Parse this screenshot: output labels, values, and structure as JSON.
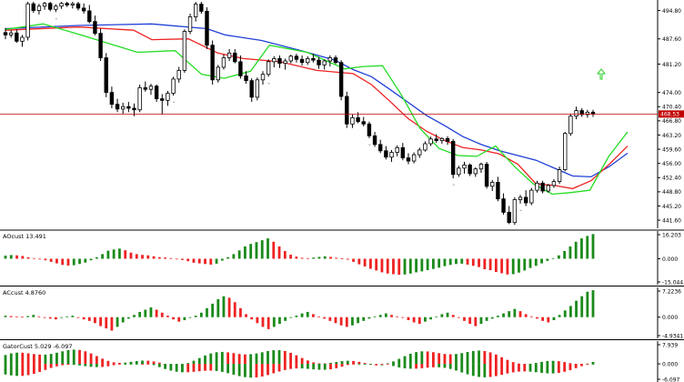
{
  "chart_data": {
    "type": "candlestick",
    "main": {
      "price_ticks": [
        "494.80",
        "481.20",
        "487.60",
        "474.00",
        "470.40",
        "466.80",
        "463.20",
        "459.60",
        "456.00",
        "452.40",
        "448.80",
        "445.20",
        "441.60"
      ],
      "current_price": "468.53",
      "ylim": [
        440.0,
        497.0
      ],
      "candles": [
        [
          489.2,
          490.4,
          487.5,
          488.6
        ],
        [
          488.6,
          489.8,
          487.9,
          489.1
        ],
        [
          489.1,
          490.0,
          486.6,
          487.0
        ],
        [
          487.0,
          488.6,
          485.6,
          488.0
        ],
        [
          488.0,
          497.0,
          487.2,
          496.5
        ],
        [
          496.5,
          497.0,
          494.2,
          494.8
        ],
        [
          494.8,
          496.5,
          493.8,
          495.9
        ],
        [
          495.9,
          497.0,
          495.0,
          496.6
        ],
        [
          496.6,
          497.0,
          494.6,
          495.1
        ],
        [
          495.1,
          496.4,
          494.4,
          495.9
        ],
        [
          495.9,
          497.0,
          495.2,
          496.6
        ],
        [
          496.6,
          497.0,
          495.7,
          496.2
        ],
        [
          496.2,
          497.0,
          495.3,
          496.5
        ],
        [
          496.5,
          497.0,
          494.8,
          495.4
        ],
        [
          495.4,
          496.6,
          494.0,
          494.7
        ],
        [
          494.7,
          496.2,
          491.5,
          492.0
        ],
        [
          492.0,
          493.5,
          488.5,
          489.0
        ],
        [
          489.0,
          490.2,
          482.0,
          482.8
        ],
        [
          482.8,
          484.0,
          472.8,
          474.0
        ],
        [
          474.0,
          475.5,
          470.0,
          471.0
        ],
        [
          471.0,
          472.4,
          469.0,
          469.8
        ],
        [
          469.8,
          471.4,
          468.6,
          470.4
        ],
        [
          470.4,
          471.6,
          469.0,
          470.0
        ],
        [
          470.0,
          471.2,
          468.0,
          469.6
        ],
        [
          469.6,
          476.0,
          469.0,
          475.2
        ],
        [
          475.2,
          476.8,
          474.2,
          474.8
        ],
        [
          474.8,
          476.2,
          473.4,
          475.6
        ],
        [
          475.6,
          476.0,
          471.6,
          472.4
        ],
        [
          472.4,
          473.6,
          468.4,
          472.0
        ],
        [
          472.0,
          474.4,
          470.6,
          473.8
        ],
        [
          473.8,
          478.0,
          473.2,
          477.4
        ],
        [
          477.4,
          480.5,
          476.5,
          479.6
        ],
        [
          479.6,
          490.0,
          479.0,
          489.5
        ],
        [
          489.5,
          494.0,
          488.8,
          493.2
        ],
        [
          493.2,
          497.0,
          492.0,
          496.4
        ],
        [
          496.4,
          497.0,
          494.0,
          494.6
        ],
        [
          494.6,
          495.6,
          485.0,
          486.0
        ],
        [
          486.0,
          487.2,
          476.0,
          477.2
        ],
        [
          477.2,
          481.0,
          476.5,
          480.4
        ],
        [
          480.4,
          483.6,
          479.8,
          482.8
        ],
        [
          482.8,
          485.0,
          482.0,
          484.0
        ],
        [
          484.0,
          485.0,
          481.4,
          481.8
        ],
        [
          481.8,
          483.4,
          477.5,
          478.2
        ],
        [
          478.2,
          479.4,
          476.2,
          477.0
        ],
        [
          477.0,
          477.6,
          471.6,
          472.8
        ],
        [
          472.8,
          477.8,
          472.0,
          477.2
        ],
        [
          477.2,
          479.4,
          476.0,
          478.6
        ],
        [
          478.6,
          482.4,
          478.0,
          481.8
        ],
        [
          481.8,
          483.2,
          480.4,
          482.6
        ],
        [
          482.6,
          483.4,
          480.2,
          481.4
        ],
        [
          481.4,
          482.6,
          479.8,
          482.0
        ],
        [
          482.0,
          483.6,
          481.4,
          483.2
        ],
        [
          483.2,
          483.8,
          481.6,
          482.4
        ],
        [
          482.4,
          483.4,
          480.8,
          481.6
        ],
        [
          481.6,
          483.2,
          481.0,
          482.6
        ],
        [
          482.6,
          483.8,
          481.6,
          482.2
        ],
        [
          482.2,
          483.0,
          480.0,
          481.0
        ],
        [
          481.0,
          482.4,
          479.8,
          482.0
        ],
        [
          482.0,
          483.4,
          480.6,
          482.8
        ],
        [
          482.8,
          483.4,
          481.2,
          481.6
        ],
        [
          481.6,
          482.2,
          472.0,
          473.0
        ],
        [
          473.0,
          474.2,
          465.0,
          466.0
        ],
        [
          466.0,
          468.4,
          465.0,
          467.6
        ],
        [
          467.6,
          469.0,
          466.2,
          466.6
        ],
        [
          466.6,
          467.8,
          465.4,
          466.0
        ],
        [
          466.0,
          466.6,
          462.4,
          463.0
        ],
        [
          463.0,
          464.0,
          460.2,
          460.8
        ],
        [
          460.8,
          462.0,
          458.6,
          459.2
        ],
        [
          459.2,
          460.4,
          457.0,
          457.6
        ],
        [
          457.6,
          459.4,
          456.4,
          458.8
        ],
        [
          458.8,
          460.6,
          457.8,
          460.0
        ],
        [
          460.0,
          461.2,
          456.8,
          457.4
        ],
        [
          457.4,
          458.6,
          455.8,
          456.6
        ],
        [
          456.6,
          458.8,
          456.0,
          458.2
        ],
        [
          458.2,
          460.0,
          457.4,
          459.4
        ],
        [
          459.4,
          461.6,
          459.0,
          461.0
        ],
        [
          461.0,
          462.8,
          460.4,
          462.2
        ],
        [
          462.2,
          463.4,
          461.2,
          461.8
        ],
        [
          461.8,
          462.6,
          461.0,
          462.3
        ],
        [
          462.3,
          462.9,
          460.7,
          461.6
        ],
        [
          461.6,
          462.2,
          452.2,
          453.2
        ],
        [
          453.2,
          455.4,
          452.6,
          454.8
        ],
        [
          454.8,
          456.4,
          453.4,
          455.6
        ],
        [
          455.6,
          456.0,
          452.8,
          453.4
        ],
        [
          453.4,
          455.0,
          452.6,
          454.6
        ],
        [
          454.6,
          456.2,
          453.6,
          455.8
        ],
        [
          455.8,
          456.4,
          449.6,
          450.2
        ],
        [
          450.2,
          451.8,
          449.0,
          451.2
        ],
        [
          451.2,
          452.6,
          446.4,
          447.0
        ],
        [
          447.0,
          448.4,
          443.0,
          443.6
        ],
        [
          443.6,
          445.2,
          440.6,
          441.0
        ],
        [
          441.0,
          447.4,
          440.4,
          446.8
        ],
        [
          446.8,
          448.0,
          445.8,
          447.4
        ],
        [
          447.4,
          449.2,
          445.2,
          446.0
        ],
        [
          446.0,
          449.8,
          445.4,
          449.2
        ],
        [
          449.2,
          451.6,
          448.6,
          451.0
        ],
        [
          451.0,
          451.6,
          448.4,
          449.0
        ],
        [
          449.0,
          450.8,
          448.6,
          450.4
        ],
        [
          450.4,
          452.0,
          449.8,
          451.4
        ],
        [
          451.4,
          455.2,
          450.8,
          454.4
        ],
        [
          454.4,
          464.0,
          454.0,
          463.6
        ],
        [
          463.6,
          468.6,
          463.0,
          468.0
        ],
        [
          468.0,
          470.4,
          467.2,
          469.4
        ],
        [
          469.4,
          470.0,
          467.8,
          468.4
        ],
        [
          468.4,
          469.6,
          467.6,
          469.0
        ],
        [
          469.0,
          469.6,
          467.8,
          468.5
        ]
      ],
      "lines": {
        "blue": [
          [
            0,
            490.2
          ],
          [
            20,
            491.0
          ],
          [
            40,
            491.4
          ],
          [
            55,
            490.2
          ],
          [
            60,
            488.6
          ],
          [
            70,
            487.2
          ],
          [
            80,
            484.8
          ],
          [
            90,
            482.2
          ],
          [
            95,
            479.8
          ],
          [
            100,
            478.0
          ],
          [
            105,
            474.8
          ],
          [
            110,
            471.5
          ],
          [
            115,
            468.2
          ],
          [
            120,
            465.6
          ],
          [
            125,
            462.8
          ],
          [
            130,
            460.8
          ],
          [
            135,
            459.2
          ],
          [
            140,
            458.0
          ],
          [
            145,
            456.8
          ],
          [
            150,
            454.8
          ],
          [
            155,
            452.8
          ],
          [
            160,
            452.6
          ],
          [
            165,
            455.2
          ],
          [
            170,
            458.6
          ]
        ],
        "red": [
          [
            0,
            489.8
          ],
          [
            20,
            490.6
          ],
          [
            35,
            489.8
          ],
          [
            40,
            487.4
          ],
          [
            50,
            487.6
          ],
          [
            58,
            484.0
          ],
          [
            65,
            482.6
          ],
          [
            75,
            481.8
          ],
          [
            85,
            479.6
          ],
          [
            95,
            478.8
          ],
          [
            100,
            476.0
          ],
          [
            105,
            471.8
          ],
          [
            110,
            467.4
          ],
          [
            115,
            464.2
          ],
          [
            120,
            461.8
          ],
          [
            125,
            460.0
          ],
          [
            130,
            459.4
          ],
          [
            135,
            458.4
          ],
          [
            140,
            455.8
          ],
          [
            145,
            450.8
          ],
          [
            150,
            450.4
          ],
          [
            155,
            449.6
          ],
          [
            160,
            451.6
          ],
          [
            165,
            455.8
          ],
          [
            170,
            460.4
          ]
        ],
        "green": [
          [
            0,
            490.0
          ],
          [
            10,
            491.4
          ],
          [
            20,
            488.6
          ],
          [
            35,
            484.2
          ],
          [
            45,
            484.6
          ],
          [
            52,
            478.6
          ],
          [
            58,
            477.6
          ],
          [
            65,
            479.4
          ],
          [
            70,
            486.0
          ],
          [
            80,
            484.2
          ],
          [
            90,
            480.0
          ],
          [
            95,
            480.6
          ],
          [
            100,
            480.8
          ],
          [
            105,
            473.4
          ],
          [
            110,
            464.8
          ],
          [
            115,
            459.8
          ],
          [
            120,
            458.0
          ],
          [
            125,
            457.8
          ],
          [
            130,
            460.4
          ],
          [
            135,
            455.2
          ],
          [
            140,
            450.8
          ],
          [
            145,
            448.2
          ],
          [
            150,
            448.6
          ],
          [
            155,
            449.2
          ],
          [
            160,
            457.8
          ],
          [
            165,
            464.0
          ]
        ]
      }
    },
    "panels": [
      {
        "label": "AOcust 13.491",
        "ticks": [
          "16.203",
          "0.000",
          "-15.044"
        ],
        "ylim": [
          -15.044,
          16.203
        ]
      },
      {
        "label": "ACcust 4.8760",
        "ticks": [
          "7.2236",
          "0.000",
          "-4.9341"
        ],
        "ylim": [
          -4.9341,
          7.2236
        ]
      },
      {
        "label": "GatorCust 5.029 -6.097",
        "ticks": [
          "7.939",
          "0.000",
          "-6.097"
        ],
        "ylim": [
          -6.097,
          7.939
        ]
      }
    ],
    "colors": {
      "up": "#008000",
      "down": "#ff0000",
      "blue_line": "#0000ff",
      "red_line": "#ff0000",
      "green_line": "#00e000",
      "price_line": "#d00000"
    }
  }
}
